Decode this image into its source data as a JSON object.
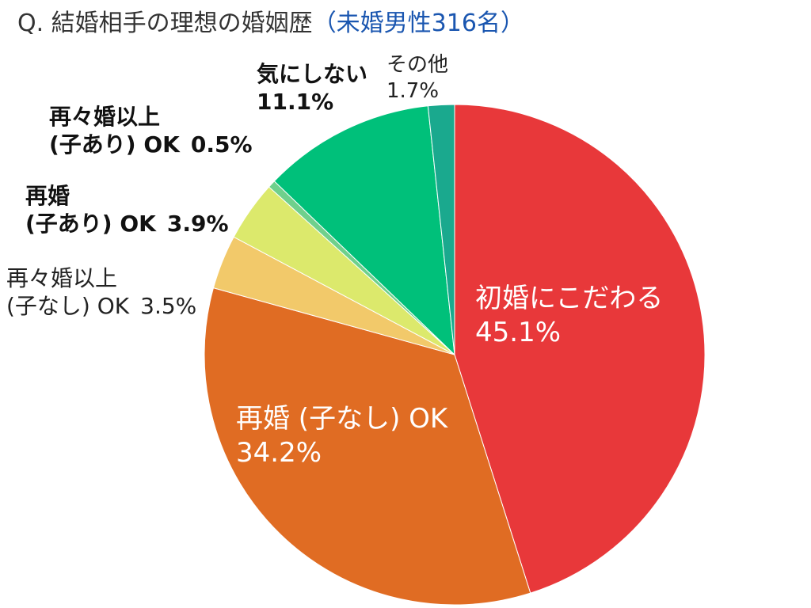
{
  "chart_data": {
    "type": "pie",
    "title": "Q. 結婚相手の理想の婚姻歴",
    "subtitle": "（未婚男性316名）",
    "categories": [
      "初婚にこだわる",
      "再婚 (子なし) OK",
      "再々婚以上\n(子なし) OK",
      "再婚\n(子あり) OK",
      "再々婚以上\n(子あり) OK",
      "気にしない",
      "その他"
    ],
    "values": [
      45.1,
      34.2,
      3.5,
      3.9,
      0.5,
      11.1,
      1.7
    ],
    "value_labels": [
      "45.1%",
      "34.2%",
      "3.5%",
      "3.9%",
      "0.5%",
      "11.1%",
      "1.7%"
    ],
    "colors": [
      "#e8383a",
      "#e06c23",
      "#f2c96a",
      "#dce96c",
      "#6fd08c",
      "#00c07a",
      "#1aa98e"
    ]
  }
}
